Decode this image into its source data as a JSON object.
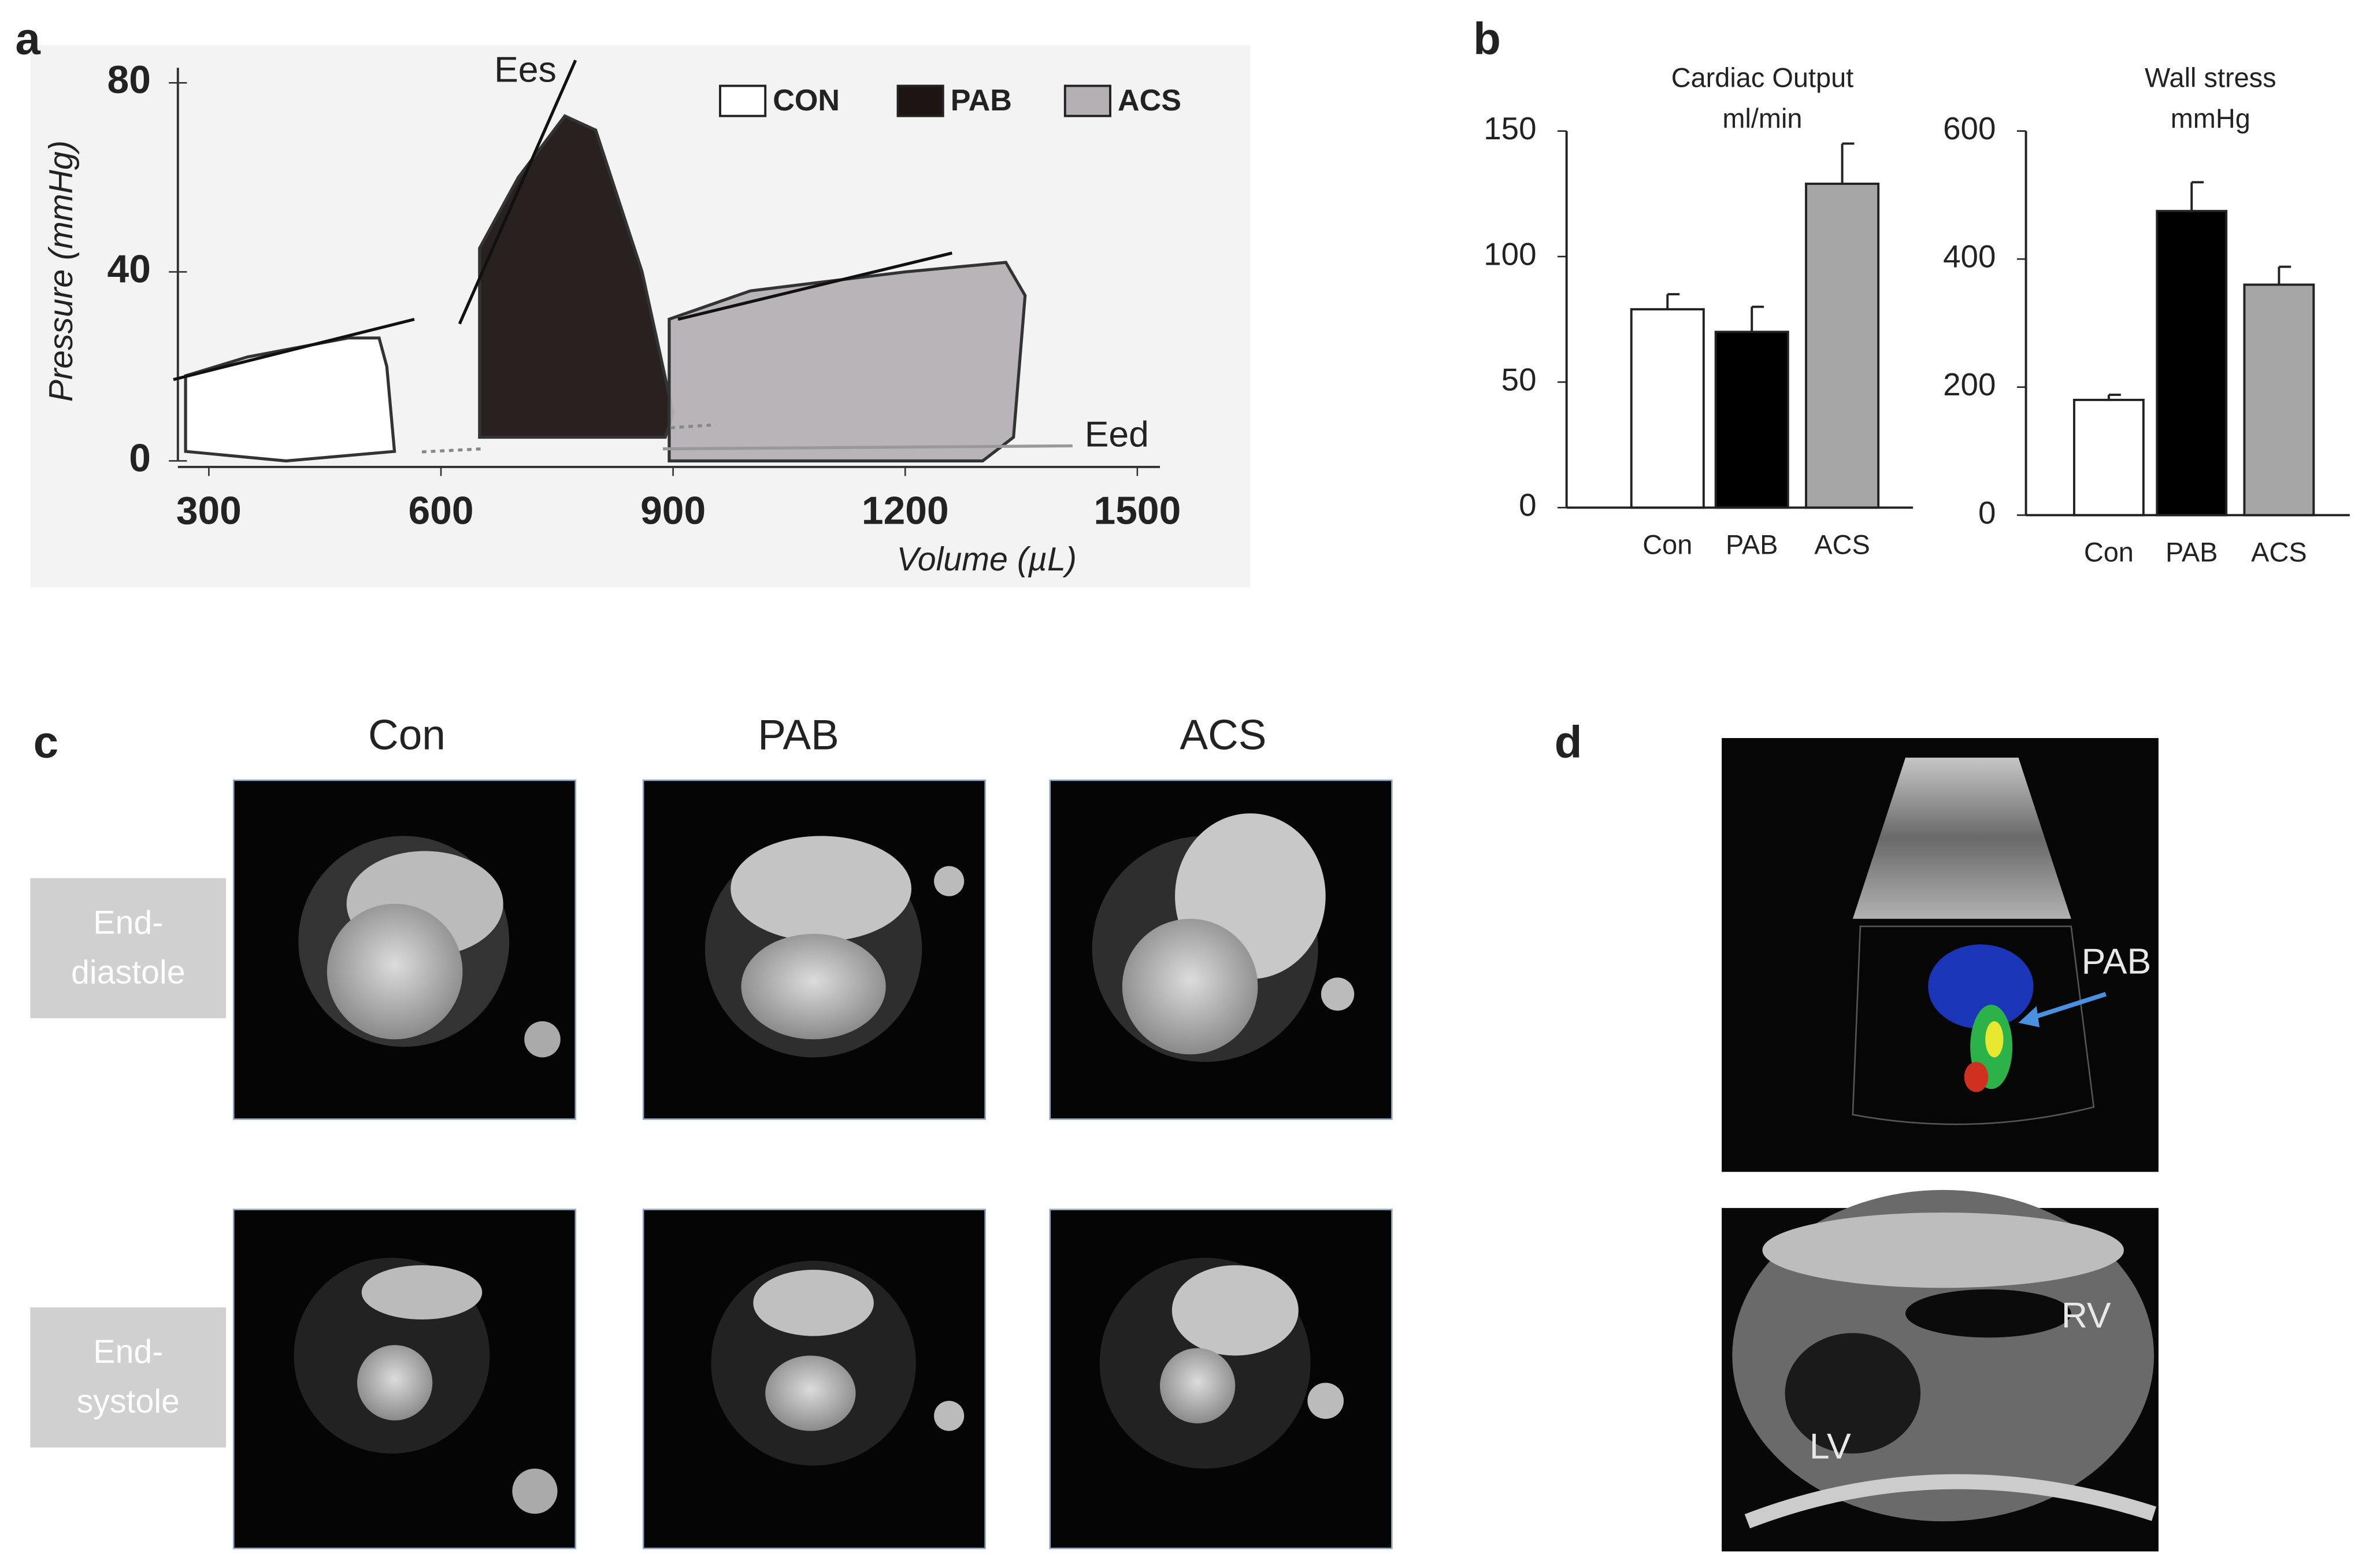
{
  "chart_data": [
    {
      "type": "pv-loop",
      "panel": "a",
      "xlabel": "Volume (µL)",
      "ylabel": "Pressure (mmHg)",
      "xlim": [
        260,
        1500
      ],
      "ylim": [
        0,
        80
      ],
      "xticks": [
        300,
        600,
        900,
        1200,
        1500
      ],
      "yticks": [
        0,
        40,
        80
      ],
      "annotations": [
        "Ees",
        "Eed"
      ],
      "series": [
        {
          "name": "CON",
          "color": "#ffffff",
          "x": [
            270,
            270,
            350,
            480,
            520,
            530,
            540,
            400
          ],
          "values": [
            2,
            18,
            22,
            26,
            26,
            20,
            2,
            0
          ]
        },
        {
          "name": "PAB",
          "color": "#1e1414",
          "x": [
            650,
            650,
            700,
            760,
            800,
            860,
            900,
            890,
            750
          ],
          "values": [
            5,
            45,
            60,
            73,
            70,
            40,
            10,
            5,
            5
          ]
        },
        {
          "name": "ACS",
          "color": "#b4b0b4",
          "x": [
            895,
            895,
            1000,
            1200,
            1330,
            1355,
            1340,
            1300
          ],
          "values": [
            0,
            30,
            36,
            40,
            42,
            35,
            5,
            0
          ]
        }
      ]
    },
    {
      "type": "bar",
      "panel": "b",
      "title": "Cardiac Output",
      "subtitle": "ml/min",
      "categories": [
        "Con",
        "PAB",
        "ACS"
      ],
      "values": [
        79,
        70,
        129
      ],
      "errors": [
        6,
        10,
        16
      ],
      "colors": [
        "#ffffff",
        "#000000",
        "#a6a6a6"
      ],
      "ylim": [
        0,
        150
      ],
      "yticks": [
        0,
        50,
        100,
        150
      ]
    },
    {
      "type": "bar",
      "title": "Wall stress",
      "subtitle": "mmHg",
      "categories": [
        "Con",
        "PAB",
        "ACS"
      ],
      "values": [
        180,
        475,
        360
      ],
      "errors": [
        8,
        45,
        28
      ],
      "colors": [
        "#ffffff",
        "#000000",
        "#a6a6a6"
      ],
      "ylim": [
        0,
        600
      ],
      "yticks": [
        0,
        200,
        400,
        600
      ]
    }
  ],
  "images": {
    "c": {
      "panel": "c",
      "columns": [
        "Con",
        "PAB",
        "ACS"
      ],
      "rows": [
        [
          "End-",
          "diastole"
        ],
        [
          "End-",
          "systole"
        ]
      ]
    },
    "d": {
      "panel": "d",
      "labels": [
        "PAB",
        "RV",
        "LV"
      ]
    }
  }
}
